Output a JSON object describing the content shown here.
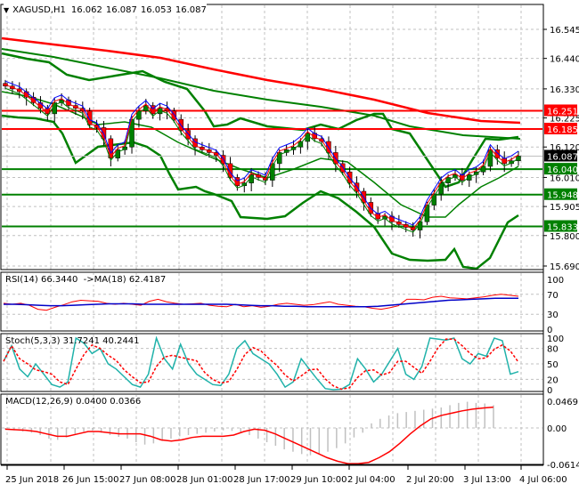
{
  "header": {
    "symbol_label": "XAGUSD,H1",
    "open": "16.062",
    "high": "16.087",
    "low": "16.053",
    "close": "16.087",
    "collapse_icon": "triangle-down-icon"
  },
  "colors": {
    "background": "#ffffff",
    "grid": "#c0c0c0",
    "axis": "#000000",
    "bull_candle": "#008000",
    "bear_candle": "#ff0000",
    "resistance_line": "#ff0000",
    "support_line": "#008000",
    "bollinger": "#008000",
    "ma_slow": "#ff0000",
    "ma_mid": "#008000",
    "ema_blue": "#0000ff",
    "ema_red": "#ff0000",
    "ema_green": "#008000",
    "rsi": "#ff0000",
    "rsi_ma": "#0000c8",
    "stoch_main": "#20b2aa",
    "stoch_signal": "#ff0000",
    "macd_hist": "#c0c0c0",
    "macd_signal": "#ff0000",
    "current_price_bg": "#000000",
    "level_label_text": "#ffffff"
  },
  "price_axis": {
    "ticks": [
      "16.545",
      "16.440",
      "16.330",
      "16.225",
      "16.120",
      "16.010",
      "15.905",
      "15.800",
      "15.690"
    ],
    "current_price": "16.087"
  },
  "levels": [
    {
      "value": "16.251",
      "type": "resistance"
    },
    {
      "value": "16.185",
      "type": "resistance"
    },
    {
      "value": "16.040",
      "type": "support"
    },
    {
      "value": "15.948",
      "type": "support"
    },
    {
      "value": "15.833",
      "type": "support"
    }
  ],
  "rsi_panel": {
    "label": "RSI(14) 66.3440  ->MA(18) 62.4187",
    "ticks": [
      "100",
      "70",
      "30",
      "0"
    ]
  },
  "stoch_panel": {
    "label": "Stoch(5,3,3) 31.7241 40.2441",
    "ticks": [
      "100",
      "80",
      "50",
      "20",
      "0"
    ]
  },
  "macd_panel": {
    "label": "MACD(12,26,9) 0.0400 0.0366",
    "ticks": [
      "0.0469",
      "0.00",
      "-0.0614"
    ]
  },
  "time_axis": {
    "labels": [
      "25 Jun 2018",
      "26 Jun 15:00",
      "27 Jun 08:00",
      "28 Jun 01:00",
      "28 Jun 17:00",
      "29 Jun 10:00",
      "2 Jul 04:00",
      "2 Jul 20:00",
      "3 Jul 13:00",
      "4 Jul 06:00"
    ]
  },
  "chart_data": [
    {
      "type": "candlestick",
      "title": "XAGUSD,H1",
      "ohlc_last": {
        "open": 16.062,
        "high": 16.087,
        "low": 16.053,
        "close": 16.087
      },
      "y_range": [
        15.66,
        16.62
      ],
      "y_ticks": [
        16.545,
        16.44,
        16.33,
        16.225,
        16.12,
        16.01,
        15.905,
        15.8,
        15.69
      ],
      "x_labels": [
        "25 Jun 2018",
        "26 Jun 15:00",
        "27 Jun 08:00",
        "28 Jun 01:00",
        "28 Jun 17:00",
        "29 Jun 10:00",
        "2 Jul 04:00",
        "2 Jul 20:00",
        "3 Jul 13:00",
        "4 Jul 06:00"
      ],
      "close_approx": [
        16.34,
        16.33,
        16.32,
        16.3,
        16.28,
        16.26,
        16.24,
        16.28,
        16.29,
        16.27,
        16.26,
        16.25,
        16.2,
        16.19,
        16.15,
        16.08,
        16.11,
        16.12,
        16.22,
        16.25,
        16.27,
        16.24,
        16.26,
        16.25,
        16.22,
        16.18,
        16.15,
        16.12,
        16.11,
        16.1,
        16.09,
        16.06,
        16.01,
        15.98,
        15.99,
        16.02,
        16.01,
        16.0,
        16.06,
        16.1,
        16.11,
        16.12,
        16.14,
        16.17,
        16.15,
        16.14,
        16.1,
        16.06,
        16.03,
        15.99,
        15.96,
        15.92,
        15.88,
        15.86,
        15.87,
        15.85,
        15.84,
        15.83,
        15.82,
        15.85,
        15.91,
        15.95,
        15.99,
        16.01,
        16.02,
        16.0,
        16.02,
        16.03,
        16.05,
        16.11,
        16.08,
        16.06,
        16.07,
        16.087
      ],
      "horizontal_levels": {
        "resistance": [
          16.251,
          16.185
        ],
        "support": [
          16.04,
          15.948,
          15.833
        ]
      },
      "overlays": [
        "Bollinger Bands (green)",
        "Slow MA (red, descending ~16.52 to 16.22)",
        "Mid MA (green, descending ~16.47 to 16.16)",
        "Short EMAs (blue/red/green)"
      ]
    },
    {
      "type": "line",
      "title": "RSI(14) 66.3440 ->MA(18) 62.4187",
      "y_range": [
        0,
        100
      ],
      "y_ticks": [
        100,
        70,
        30,
        0
      ],
      "series": [
        {
          "name": "RSI(14)",
          "last": 66.344
        },
        {
          "name": "MA(18)",
          "last": 62.4187
        }
      ]
    },
    {
      "type": "line",
      "title": "Stoch(5,3,3) 31.7241 40.2441",
      "y_range": [
        0,
        100
      ],
      "y_ticks": [
        100,
        80,
        50,
        20,
        0
      ],
      "series": [
        {
          "name": "%K",
          "last": 31.7241
        },
        {
          "name": "%D",
          "last": 40.2441
        }
      ]
    },
    {
      "type": "bar",
      "title": "MACD(12,26,9) 0.0400 0.0366",
      "y_range": [
        -0.0614,
        0.0469
      ],
      "y_ticks": [
        0.0469,
        0.0,
        -0.0614
      ],
      "series": [
        {
          "name": "MACD histogram",
          "last": 0.04
        },
        {
          "name": "Signal",
          "last": 0.0366
        }
      ]
    }
  ]
}
